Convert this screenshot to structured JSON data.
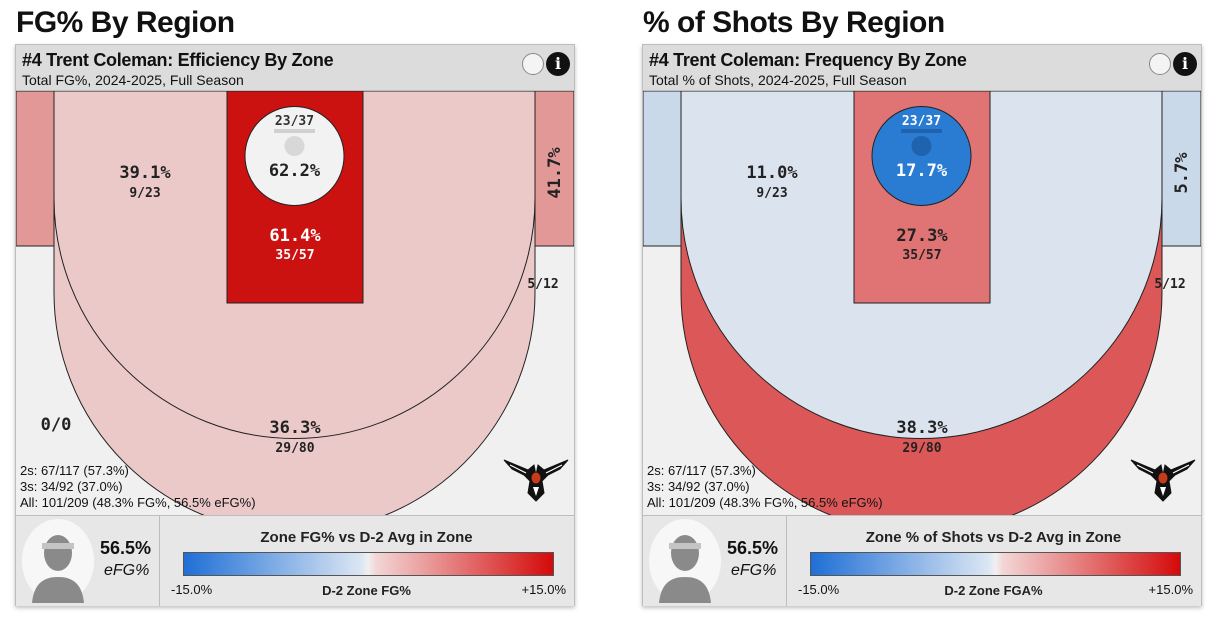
{
  "chart_data": [
    {
      "type": "heatmap",
      "region_title": "FG% By Region",
      "title": "#4 Trent Coleman: Efficiency By Zone",
      "subtitle": "Total FG%, 2024-2025, Full Season",
      "zones": {
        "rim": {
          "value": "62.2%",
          "makes_attempts": "23/37",
          "color": "#f2f2f2"
        },
        "paint": {
          "value": "61.4%",
          "makes_attempts": "35/57",
          "color": "#cc1111"
        },
        "midrange": {
          "value": "39.1%",
          "makes_attempts": "9/23",
          "color": "#ecc9c9"
        },
        "corner_left": {
          "value": "0/0",
          "makes_attempts": "",
          "color": "#e39898"
        },
        "corner_right": {
          "value": "41.7%",
          "makes_attempts": "5/12",
          "color": "#e39898"
        },
        "three": {
          "value": "36.3%",
          "makes_attempts": "29/80",
          "color": "#ecc9c9"
        },
        "outside": {
          "color": "#f0f0f0"
        }
      },
      "summary": [
        "2s: 67/117 (57.3%)",
        "3s: 34/92 (37.0%)",
        "All: 101/209 (48.3% FG%, 56.5% eFG%)"
      ],
      "efg_value": "56.5%",
      "efg_label": "eFG%",
      "legend_title": "Zone FG% vs D-2 Avg in Zone",
      "legend_min": "-15.0%",
      "legend_mid": "D-2 Zone FG%",
      "legend_max": "+15.0%"
    },
    {
      "type": "heatmap",
      "region_title": "% of Shots By Region",
      "title": "#4 Trent Coleman: Frequency By Zone",
      "subtitle": "Total % of Shots, 2024-2025, Full Season",
      "zones": {
        "rim": {
          "value": "17.7%",
          "makes_attempts": "23/37",
          "color": "#2a7bd2"
        },
        "paint": {
          "value": "27.3%",
          "makes_attempts": "35/57",
          "color": "#e07373"
        },
        "midrange": {
          "value": "11.0%",
          "makes_attempts": "9/23",
          "color": "#dbe4ee"
        },
        "corner_left": {
          "value": "",
          "makes_attempts": "",
          "color": "#c9d9ea"
        },
        "corner_right": {
          "value": "5.7%",
          "makes_attempts": "5/12",
          "color": "#c9d9ea"
        },
        "three": {
          "value": "38.3%",
          "makes_attempts": "29/80",
          "color": "#dc5858"
        },
        "outside": {
          "color": "#f0f0f0"
        }
      },
      "summary": [
        "2s: 67/117 (57.3%)",
        "3s: 34/92 (37.0%)",
        "All: 101/209 (48.3% FG%, 56.5% eFG%)"
      ],
      "efg_value": "56.5%",
      "efg_label": "eFG%",
      "legend_title": "Zone % of Shots vs D-2 Avg in Zone",
      "legend_min": "-15.0%",
      "legend_mid": "D-2 Zone FGA%",
      "legend_max": "+15.0%"
    }
  ]
}
